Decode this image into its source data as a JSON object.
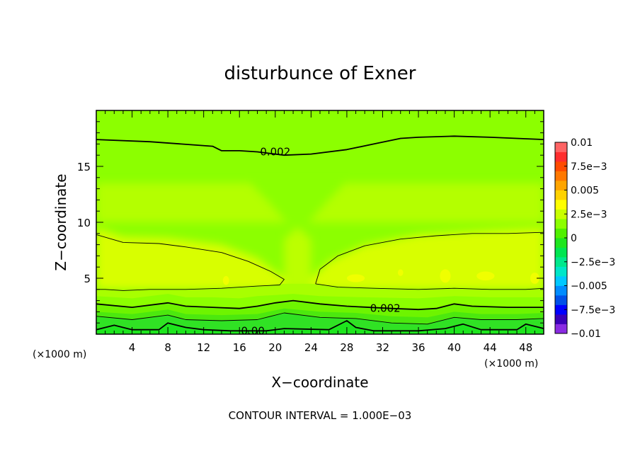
{
  "chart_data": {
    "type": "heatmap",
    "title": "disturbunce of Exner",
    "xlabel": "X−coordinate",
    "ylabel": "Z−coordinate",
    "x_unit": "(×1000 m)",
    "x_unit_right": "(×1000 m)",
    "xlim": [
      0,
      50
    ],
    "ylim": [
      0,
      20
    ],
    "x_ticks": [
      4,
      8,
      12,
      16,
      20,
      24,
      28,
      32,
      36,
      40,
      44,
      48
    ],
    "x_tick_labels": [
      "4",
      "8",
      "12",
      "16",
      "20",
      "24",
      "28",
      "32",
      "36",
      "40",
      "44",
      "48"
    ],
    "y_ticks": [
      5,
      10,
      15
    ],
    "y_tick_labels": [
      "5",
      "10",
      "15"
    ],
    "footer": "CONTOUR INTERVAL = 1.000E−03",
    "contour_interval": 0.001,
    "colorbar": {
      "range": [
        -0.01,
        0.01
      ],
      "tick_values": [
        0.01,
        0.0075,
        0.005,
        0.0025,
        0,
        -0.0025,
        -0.005,
        -0.0075,
        -0.01
      ],
      "tick_labels": [
        "0.01",
        "7.5e−3",
        "0.005",
        "2.5e−3",
        "0",
        "−2.5e−3",
        "−0.005",
        "−7.5e−3",
        "−0.01"
      ],
      "colors": [
        "#8a2be2",
        "#3a00b8",
        "#0000ff",
        "#0050e8",
        "#008cff",
        "#00c8ff",
        "#00e6c8",
        "#00e88c",
        "#00e650",
        "#1ee61e",
        "#50f000",
        "#8cff00",
        "#c8ff00",
        "#ffff00",
        "#ffd200",
        "#ffa500",
        "#ff7800",
        "#ff4b00",
        "#ff2d2d",
        "#ff6464"
      ]
    },
    "contour_labels": [
      {
        "text": "0.002",
        "x": 20,
        "z": 16.3
      },
      {
        "text": "0.002",
        "x": 32.3,
        "z": 2.3
      },
      {
        "text": "0.00",
        "x": 17.5,
        "z": 0.3
      }
    ],
    "contour_lines": [
      {
        "level": 0.002,
        "points": [
          [
            0,
            17.4
          ],
          [
            6,
            17.2
          ],
          [
            13,
            16.8
          ],
          [
            14,
            16.4
          ],
          [
            16,
            16.4
          ],
          [
            18,
            16.3
          ],
          [
            21,
            16.0
          ],
          [
            24,
            16.1
          ],
          [
            28,
            16.5
          ],
          [
            31,
            17.0
          ],
          [
            34,
            17.5
          ],
          [
            36,
            17.6
          ],
          [
            40,
            17.7
          ],
          [
            44,
            17.6
          ],
          [
            47,
            17.5
          ],
          [
            50,
            17.4
          ]
        ]
      },
      {
        "level": 0.003,
        "points": [
          [
            0,
            8.9
          ],
          [
            3,
            8.2
          ],
          [
            7,
            8.1
          ],
          [
            10,
            7.8
          ],
          [
            14,
            7.3
          ],
          [
            17,
            6.5
          ],
          [
            19.5,
            5.6
          ],
          [
            21,
            4.9
          ],
          [
            20.5,
            4.4
          ],
          [
            18,
            4.3
          ],
          [
            14,
            4.1
          ],
          [
            10,
            4.0
          ],
          [
            6,
            4.0
          ],
          [
            3,
            3.9
          ],
          [
            1,
            4.0
          ],
          [
            0,
            4.0
          ]
        ]
      },
      {
        "level": 0.003,
        "points": [
          [
            24.5,
            4.5
          ],
          [
            25,
            5.8
          ],
          [
            27,
            7.0
          ],
          [
            30,
            7.9
          ],
          [
            34,
            8.5
          ],
          [
            38,
            8.8
          ],
          [
            42,
            9.0
          ],
          [
            46,
            9.0
          ],
          [
            50,
            9.1
          ]
        ]
      },
      {
        "level": 0.003,
        "points": [
          [
            24.5,
            4.5
          ],
          [
            27,
            4.2
          ],
          [
            31,
            4.1
          ],
          [
            36,
            4.0
          ],
          [
            40,
            4.1
          ],
          [
            44,
            4.0
          ],
          [
            48,
            4.0
          ],
          [
            50,
            4.1
          ]
        ]
      },
      {
        "level": 0.002,
        "points": [
          [
            0,
            2.7
          ],
          [
            4,
            2.4
          ],
          [
            8,
            2.8
          ],
          [
            10,
            2.5
          ],
          [
            13,
            2.4
          ],
          [
            16,
            2.3
          ],
          [
            18,
            2.5
          ],
          [
            20,
            2.8
          ],
          [
            22,
            3.0
          ],
          [
            25,
            2.7
          ],
          [
            28,
            2.5
          ],
          [
            33,
            2.3
          ],
          [
            36,
            2.2
          ],
          [
            38,
            2.3
          ],
          [
            40,
            2.7
          ],
          [
            42,
            2.5
          ],
          [
            46,
            2.4
          ],
          [
            50,
            2.4
          ]
        ]
      },
      {
        "level": 0.001,
        "points": [
          [
            0,
            1.6
          ],
          [
            4,
            1.3
          ],
          [
            8,
            1.7
          ],
          [
            10,
            1.3
          ],
          [
            14,
            1.2
          ],
          [
            18,
            1.3
          ],
          [
            21,
            1.9
          ],
          [
            25,
            1.5
          ],
          [
            29,
            1.4
          ],
          [
            33,
            1.0
          ],
          [
            37,
            0.9
          ],
          [
            40,
            1.5
          ],
          [
            43,
            1.3
          ],
          [
            47,
            1.3
          ],
          [
            50,
            1.4
          ]
        ]
      },
      {
        "level": 0.0,
        "points": [
          [
            0,
            0.4
          ],
          [
            2,
            0.8
          ],
          [
            4,
            0.4
          ],
          [
            7,
            0.4
          ],
          [
            8,
            1.0
          ],
          [
            10,
            0.6
          ],
          [
            12,
            0.4
          ],
          [
            15,
            0.3
          ],
          [
            19,
            0.3
          ],
          [
            21,
            0.5
          ],
          [
            26,
            0.4
          ],
          [
            28,
            1.2
          ],
          [
            29,
            0.6
          ],
          [
            31,
            0.3
          ],
          [
            36,
            0.3
          ],
          [
            39,
            0.5
          ],
          [
            41,
            0.9
          ],
          [
            43,
            0.4
          ],
          [
            47,
            0.4
          ],
          [
            48,
            0.9
          ],
          [
            50,
            0.5
          ]
        ]
      }
    ]
  }
}
